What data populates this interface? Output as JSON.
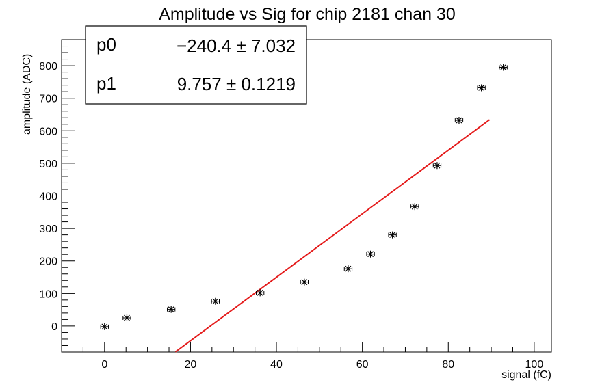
{
  "chart_data": {
    "type": "scatter",
    "title": "Amplitude vs Sig for chip 2181 chan 30",
    "xlabel": "signal (fC)",
    "ylabel": "amplitude (ADC)",
    "xlim": [
      -10,
      104
    ],
    "ylim": [
      -80,
      880
    ],
    "x_ticks": [
      0,
      20,
      40,
      60,
      80,
      100
    ],
    "y_ticks": [
      0,
      100,
      200,
      300,
      400,
      500,
      600,
      700,
      800
    ],
    "grid": false,
    "legend": "none",
    "points": [
      {
        "x": 0,
        "y": -2,
        "xerr": 0.9
      },
      {
        "x": 5.2,
        "y": 25,
        "xerr": 0.9
      },
      {
        "x": 15.5,
        "y": 51,
        "xerr": 0.9
      },
      {
        "x": 25.8,
        "y": 76,
        "xerr": 0.9
      },
      {
        "x": 36.2,
        "y": 102,
        "xerr": 0.9
      },
      {
        "x": 46.5,
        "y": 135,
        "xerr": 0.9
      },
      {
        "x": 56.7,
        "y": 176,
        "xerr": 0.9
      },
      {
        "x": 61.9,
        "y": 221,
        "xerr": 0.9
      },
      {
        "x": 67,
        "y": 280,
        "xerr": 0.9
      },
      {
        "x": 72.2,
        "y": 367,
        "xerr": 0.9
      },
      {
        "x": 77.4,
        "y": 493,
        "xerr": 0.9
      },
      {
        "x": 82.5,
        "y": 632,
        "xerr": 0.9
      },
      {
        "x": 87.7,
        "y": 732,
        "xerr": 0.9
      },
      {
        "x": 92.8,
        "y": 795,
        "xerr": 0.9
      }
    ],
    "fit": {
      "p0": -240.4,
      "p1": 9.757,
      "x_range": [
        16.5,
        89.6
      ],
      "color": "#e41a1a"
    },
    "stats": {
      "rows": [
        {
          "name": "p0",
          "value": "−240.4 ± 7.032"
        },
        {
          "name": "p1",
          "value": "9.757 ± 0.1219"
        }
      ]
    },
    "marker_color": "#000000"
  }
}
